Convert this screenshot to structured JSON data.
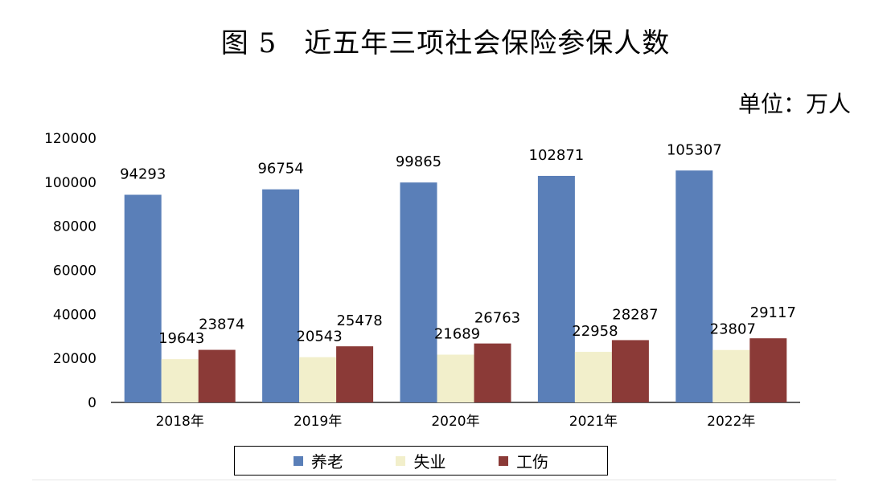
{
  "title": {
    "figure_no": "图 5",
    "text": "近五年三项社会保险参保人数"
  },
  "unit_label": "单位：万人",
  "chart_data": {
    "type": "bar",
    "title": "近五年三项社会保险参保人数",
    "unit": "万人",
    "categories": [
      "2018年",
      "2019年",
      "2020年",
      "2021年",
      "2022年"
    ],
    "series": [
      {
        "name": "养老",
        "color": "#5a7fb8",
        "values": [
          94293,
          96754,
          99865,
          102871,
          105307
        ]
      },
      {
        "name": "失业",
        "color": "#f2efcb",
        "values": [
          19643,
          20543,
          21689,
          22958,
          23807
        ]
      },
      {
        "name": "工伤",
        "color": "#8b3a37",
        "values": [
          23874,
          25478,
          26763,
          28287,
          29117
        ]
      }
    ],
    "ylim": [
      0,
      120000
    ],
    "yticks": [
      0,
      20000,
      40000,
      60000,
      80000,
      100000,
      120000
    ],
    "grid": false,
    "legend_position": "bottom"
  }
}
